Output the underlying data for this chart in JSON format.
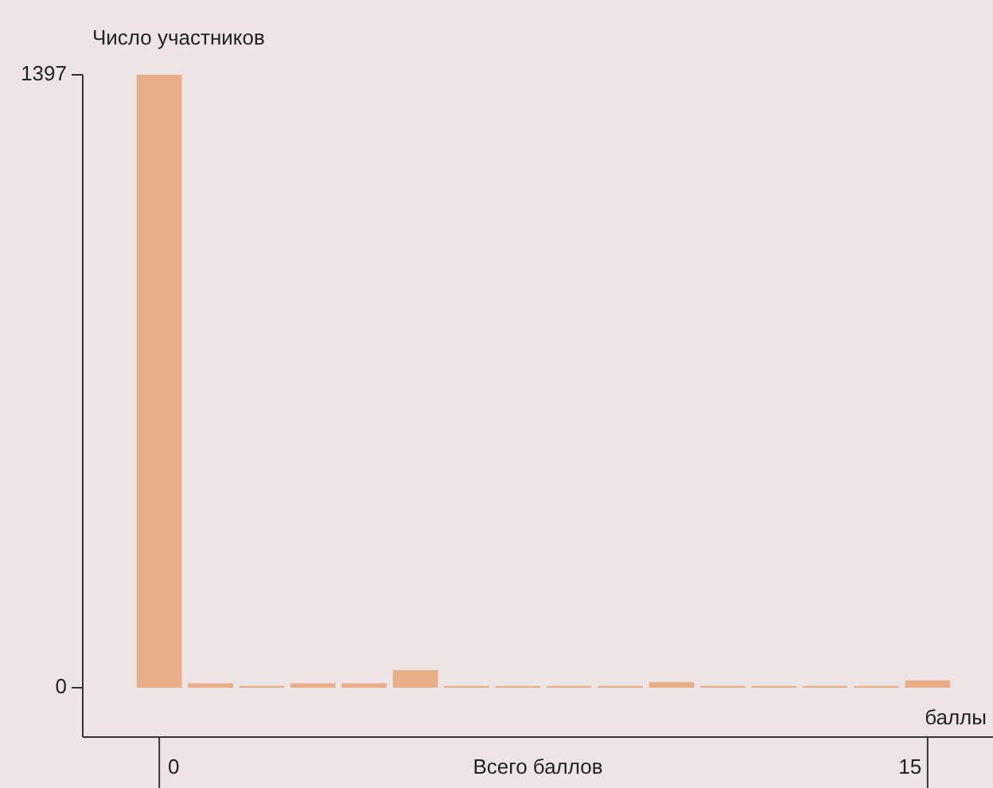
{
  "chart_data": {
    "type": "bar",
    "ylabel": "Число участников",
    "xlabel": "Всего баллов",
    "annotations": [
      "баллы"
    ],
    "categories": [
      "0",
      null,
      null,
      null,
      null,
      null,
      null,
      null,
      null,
      null,
      null,
      null,
      null,
      null,
      null,
      "15"
    ],
    "values": [
      1397,
      10,
      4,
      10,
      10,
      40,
      4,
      4,
      4,
      4,
      13,
      4,
      4,
      4,
      4,
      17
    ],
    "color": "#e8ae88",
    "ylim": [
      0,
      1397
    ],
    "yticks": [
      0,
      1397
    ],
    "grid": false
  }
}
